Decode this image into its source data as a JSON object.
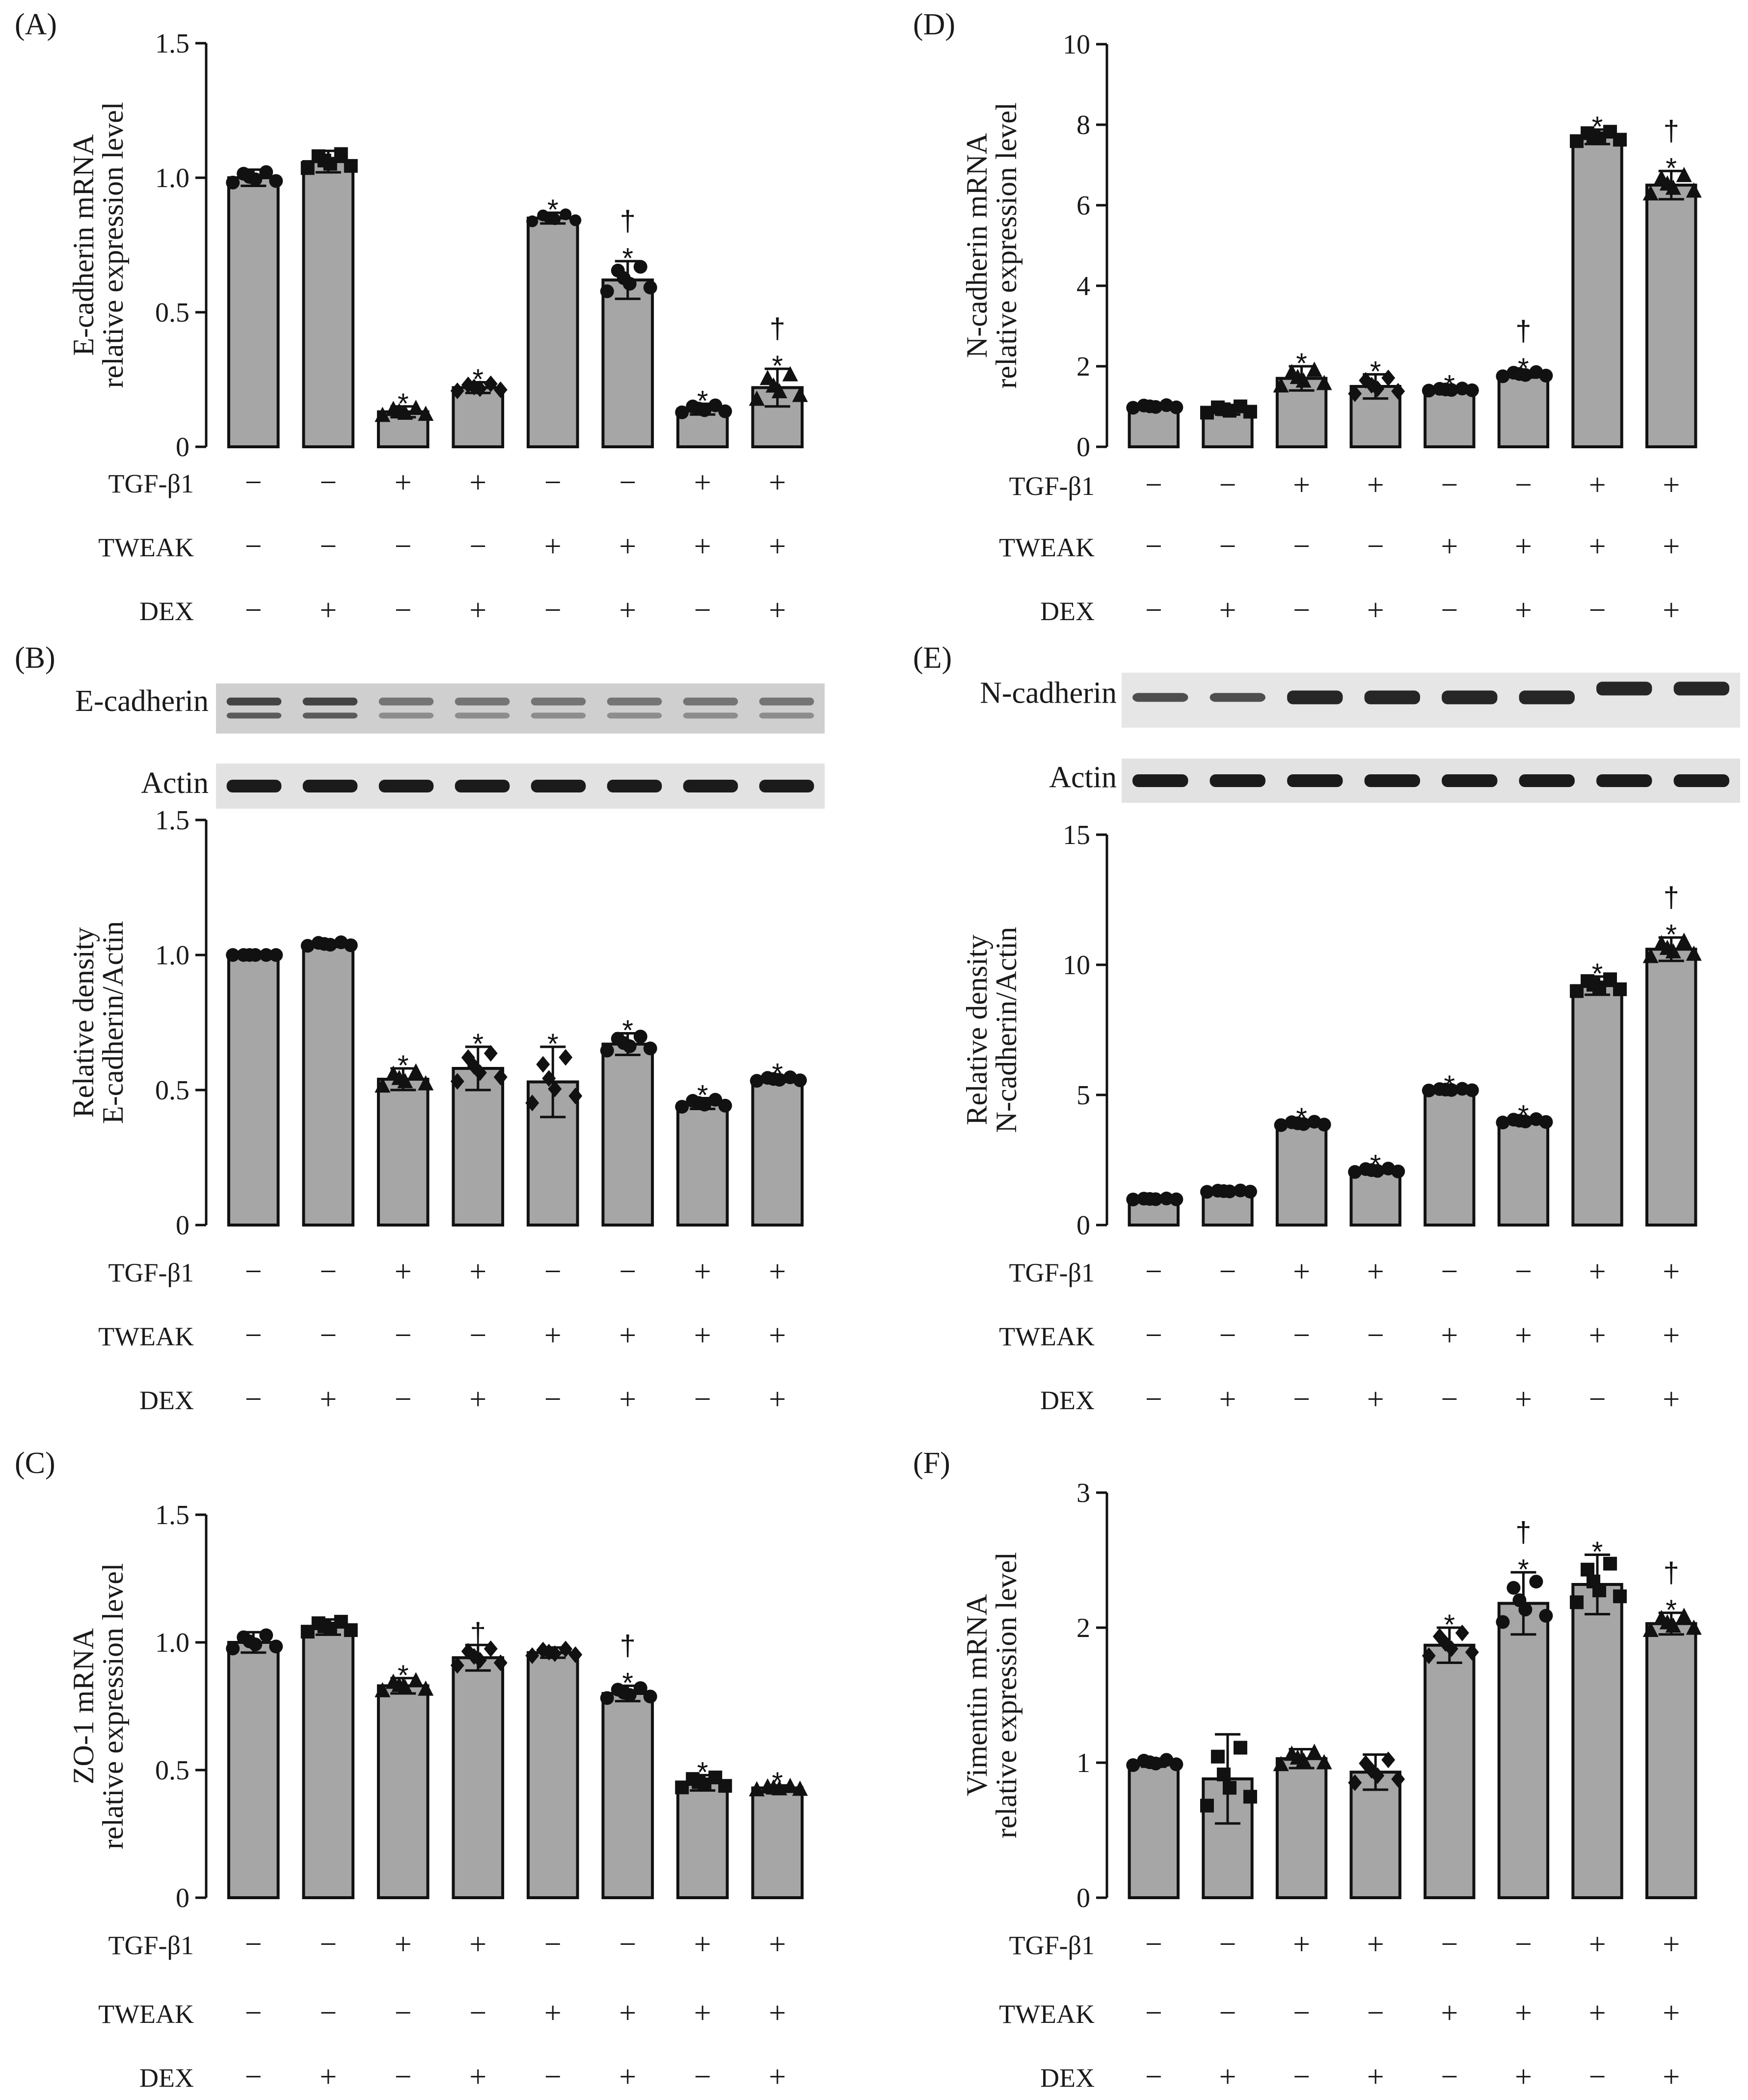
{
  "colors": {
    "bar_fill": "#a6a6a6",
    "ink": "#111111",
    "blot_bg": "#d8d8d8",
    "band": "#1e1e1e"
  },
  "conditions": [
    "TGF-β1",
    "TWEAK",
    "DEX"
  ],
  "condition_signs": {
    "TGF-β1": [
      "−",
      "−",
      "+",
      "+",
      "−",
      "−",
      "+",
      "+"
    ],
    "TWEAK": [
      "−",
      "−",
      "−",
      "−",
      "+",
      "+",
      "+",
      "+"
    ],
    "DEX": [
      "−",
      "+",
      "−",
      "+",
      "−",
      "+",
      "−",
      "+"
    ]
  },
  "blots": [
    {
      "panel": "B",
      "protein_label": "E-cadherin",
      "actin_label": "Actin"
    },
    {
      "panel": "E",
      "protein_label": "N-cadherin",
      "actin_label": "Actin"
    }
  ],
  "chart_data": [
    {
      "panel": "(A)",
      "type": "bar",
      "ylabel": [
        "E-cadherin  mRNA",
        "relative expression level"
      ],
      "ylim": [
        0,
        1.5
      ],
      "yticks": [
        0,
        0.5,
        1.0,
        1.5
      ],
      "ytick_labels": [
        "0",
        "0.5",
        "1.0",
        "1.5"
      ],
      "values": [
        1.0,
        1.06,
        0.13,
        0.22,
        0.85,
        0.62,
        0.14,
        0.22
      ],
      "errors": [
        0.03,
        0.04,
        0.02,
        0.02,
        0.02,
        0.07,
        0.02,
        0.07
      ],
      "markers": [
        "circle",
        "square",
        "triangle",
        "diamond",
        "circle-light",
        "circle",
        "circle",
        "triangle"
      ],
      "annotations": [
        [],
        [],
        [
          "*"
        ],
        [
          "*"
        ],
        [
          "*"
        ],
        [
          "†",
          "*"
        ],
        [
          "*"
        ],
        [
          "†",
          "*"
        ]
      ]
    },
    {
      "panel": "(B)",
      "type": "bar",
      "ylabel": [
        "Relative density",
        "E-cadherin/Actin"
      ],
      "ylim": [
        0,
        1.5
      ],
      "yticks": [
        0,
        0.5,
        1.0,
        1.5
      ],
      "ytick_labels": [
        "0",
        "0.5",
        "1.0",
        "1.5"
      ],
      "values": [
        1.0,
        1.04,
        0.54,
        0.58,
        0.53,
        0.67,
        0.45,
        0.54
      ],
      "errors": [
        0.0,
        0.01,
        0.04,
        0.08,
        0.13,
        0.04,
        0.02,
        0.01
      ],
      "markers": [
        "circle",
        "circle",
        "triangle",
        "diamond",
        "diamond",
        "circle",
        "circle",
        "circle"
      ],
      "annotations": [
        [],
        [],
        [
          "*"
        ],
        [
          "*"
        ],
        [
          "*"
        ],
        [
          "*"
        ],
        [
          "*"
        ],
        [
          "*"
        ]
      ]
    },
    {
      "panel": "(C)",
      "type": "bar",
      "ylabel": [
        "ZO-1  mRNA",
        "relative expression level"
      ],
      "ylim": [
        0,
        1.5
      ],
      "yticks": [
        0,
        0.5,
        1.0,
        1.5
      ],
      "ytick_labels": [
        "0",
        "0.5",
        "1.0",
        "1.5"
      ],
      "values": [
        1.0,
        1.06,
        0.83,
        0.94,
        0.96,
        0.8,
        0.45,
        0.43
      ],
      "errors": [
        0.04,
        0.03,
        0.03,
        0.05,
        0.02,
        0.03,
        0.03,
        0.01
      ],
      "markers": [
        "circle",
        "square",
        "triangle",
        "diamond",
        "diamond",
        "circle",
        "square",
        "triangle"
      ],
      "annotations": [
        [],
        [],
        [
          "*"
        ],
        [
          "†"
        ],
        [],
        [
          "†",
          "*"
        ],
        [
          "*"
        ],
        [
          "*"
        ]
      ]
    },
    {
      "panel": "(D)",
      "type": "bar",
      "ylabel": [
        "N-cadherin  mRNA",
        "relative expression level"
      ],
      "ylim": [
        0,
        10
      ],
      "yticks": [
        0,
        2,
        4,
        6,
        8,
        10
      ],
      "ytick_labels": [
        "0",
        "2",
        "4",
        "6",
        "8",
        "10"
      ],
      "values": [
        1.0,
        0.92,
        1.7,
        1.5,
        1.42,
        1.8,
        7.7,
        6.5
      ],
      "errors": [
        0.05,
        0.12,
        0.3,
        0.3,
        0.04,
        0.08,
        0.18,
        0.35
      ],
      "markers": [
        "circle",
        "square",
        "triangle",
        "diamond",
        "circle",
        "circle",
        "square",
        "triangle"
      ],
      "annotations": [
        [],
        [],
        [
          "*"
        ],
        [
          "*"
        ],
        [
          "*"
        ],
        [
          "†",
          "*"
        ],
        [
          "*"
        ],
        [
          "†",
          "*"
        ]
      ]
    },
    {
      "panel": "(E)",
      "type": "bar",
      "ylabel": [
        "Relative density",
        "N-cadherin/Actin"
      ],
      "ylim": [
        0,
        15
      ],
      "yticks": [
        0,
        5,
        10,
        15
      ],
      "ytick_labels": [
        "0",
        "5",
        "10",
        "15"
      ],
      "values": [
        1.0,
        1.3,
        3.9,
        2.1,
        5.2,
        4.0,
        9.2,
        10.6
      ],
      "errors": [
        0.03,
        0.04,
        0.1,
        0.1,
        0.05,
        0.1,
        0.35,
        0.45
      ],
      "markers": [
        "circle",
        "circle",
        "circle",
        "circle",
        "circle",
        "circle",
        "square",
        "triangle"
      ],
      "annotations": [
        [],
        [],
        [
          "*"
        ],
        [
          "*"
        ],
        [
          "*"
        ],
        [
          "*"
        ],
        [
          "*"
        ],
        [
          "†",
          "*"
        ]
      ]
    },
    {
      "panel": "(F)",
      "type": "bar",
      "ylabel": [
        "Vimentin  mRNA",
        "relative expression level"
      ],
      "ylim": [
        0,
        3
      ],
      "yticks": [
        0,
        1,
        2,
        3
      ],
      "ytick_labels": [
        "0",
        "1",
        "2",
        "3"
      ],
      "values": [
        1.0,
        0.88,
        1.03,
        0.93,
        1.87,
        2.18,
        2.32,
        2.03
      ],
      "errors": [
        0.03,
        0.33,
        0.07,
        0.13,
        0.13,
        0.23,
        0.22,
        0.08
      ],
      "markers": [
        "circle",
        "square",
        "triangle",
        "diamond",
        "diamond",
        "circle",
        "square",
        "triangle"
      ],
      "annotations": [
        [],
        [],
        [],
        [],
        [
          "*"
        ],
        [
          "†",
          "*"
        ],
        [
          "*"
        ],
        [
          "†",
          "*"
        ]
      ]
    }
  ]
}
